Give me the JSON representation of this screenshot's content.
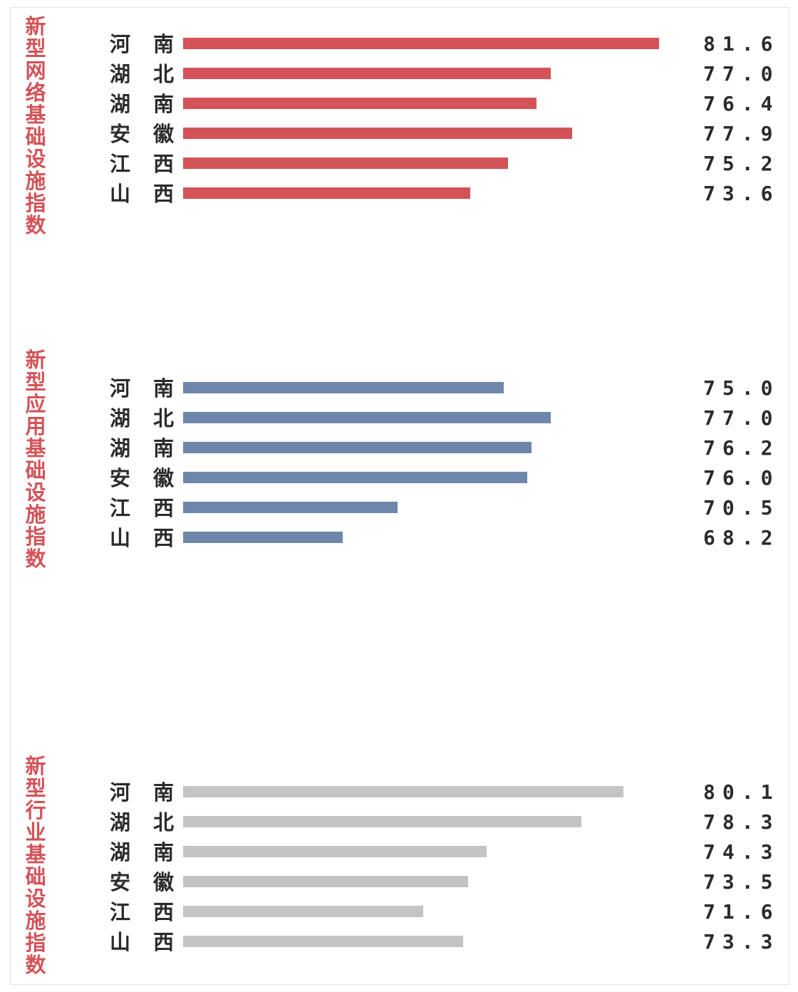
{
  "chart_data": [
    {
      "type": "bar",
      "title": "新型网络基础设施指数",
      "color": "#d35358",
      "categories": [
        "河南",
        "湖北",
        "湖南",
        "安徽",
        "江西",
        "山西"
      ],
      "values": [
        81.6,
        77.0,
        76.4,
        77.9,
        75.2,
        73.6
      ],
      "value_labels": [
        "81.6",
        "77.0",
        "76.4",
        "77.9",
        "75.2",
        "73.6"
      ]
    },
    {
      "type": "bar",
      "title": "新型应用基础设施指数",
      "color": "#6f86ab",
      "categories": [
        "河南",
        "湖北",
        "湖南",
        "安徽",
        "江西",
        "山西"
      ],
      "values": [
        75.0,
        77.0,
        76.2,
        76.0,
        70.5,
        68.2
      ],
      "value_labels": [
        "75.0",
        "77.0",
        "76.2",
        "76.0",
        "70.5",
        "68.2"
      ]
    },
    {
      "type": "bar",
      "title": "新型行业基础设施指数",
      "color": "#c4c4c4",
      "categories": [
        "河南",
        "湖北",
        "湖南",
        "安徽",
        "江西",
        "山西"
      ],
      "values": [
        80.1,
        78.3,
        74.3,
        73.5,
        71.6,
        73.3
      ],
      "value_labels": [
        "80.1",
        "78.3",
        "74.3",
        "73.5",
        "71.6",
        "73.3"
      ]
    }
  ],
  "title_color": "#d35358"
}
